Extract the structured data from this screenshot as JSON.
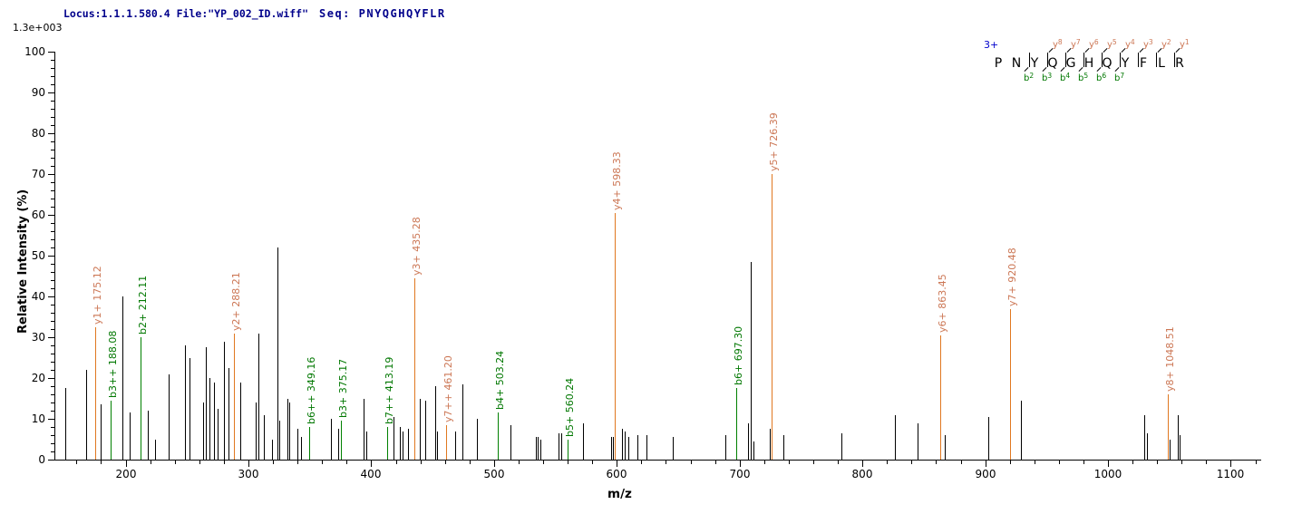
{
  "header": {
    "locus_file": "Locus:1.1.1.580.4 File:\"YP_002_ID.wiff\"",
    "seq": "Seq: PNYQGHQYFLR",
    "base_peak_intensity": "1.3e+003"
  },
  "axes": {
    "x_label": "m/z",
    "y_label": "Relative Intensity (%)",
    "x_ticks": [
      200,
      300,
      400,
      500,
      600,
      700,
      800,
      900,
      1000,
      1100
    ],
    "x_minor_step": 20,
    "y_ticks": [
      0,
      10,
      20,
      30,
      40,
      50,
      60,
      70,
      80,
      90,
      100
    ],
    "y_minor_step": 2
  },
  "sequence": {
    "charge": "3+",
    "peptide": "PNYQGHQYFLR",
    "residues": [
      "P",
      "N",
      "Y",
      "Q",
      "G",
      "H",
      "Q",
      "Y",
      "F",
      "L",
      "R"
    ],
    "cleavages": [
      {
        "after": 2,
        "b": "b2"
      },
      {
        "after": 3,
        "b": "b3",
        "y": "y8"
      },
      {
        "after": 4,
        "b": "b4",
        "y": "y7"
      },
      {
        "after": 5,
        "b": "b5",
        "y": "y6"
      },
      {
        "after": 6,
        "b": "b6",
        "y": "y5"
      },
      {
        "after": 7,
        "b": "b7",
        "y": "y4"
      },
      {
        "after": 8,
        "y": "y3"
      },
      {
        "after": 9,
        "y": "y2"
      },
      {
        "after": 10,
        "y": "y1"
      }
    ]
  },
  "colors": {
    "header_text": "#00008b",
    "y_ion_line": "#e07820",
    "y_ion_label": "#cc7755",
    "b_ion_line": "#008000",
    "b_ion_label": "#007700",
    "peak": "#000000",
    "charge_text": "#0000cc"
  },
  "chart_data": {
    "type": "bar",
    "subtype": "msms-mass-spectrum",
    "title": "Locus:1.1.1.580.4 File:\"YP_002_ID.wiff\" Seq: PNYQGHQYFLR",
    "xlabel": "m/z",
    "ylabel": "Relative Intensity (%)",
    "xlim": [
      142,
      1124
    ],
    "ylim": [
      0,
      100
    ],
    "base_peak_intensity": "1.3e+003",
    "precursor_charge": "3+",
    "peptide": "PNYQGHQYFLR",
    "grid": false,
    "legend": false,
    "peaks": [
      {
        "mz": 151.0,
        "i": 17.5
      },
      {
        "mz": 167.8,
        "i": 22
      },
      {
        "mz": 175.12,
        "i": 32.5,
        "ion": "y",
        "label": "y1+ 175.12"
      },
      {
        "mz": 180.0,
        "i": 13.5
      },
      {
        "mz": 188.08,
        "i": 14.5,
        "ion": "b",
        "label": "b3++ 188.08"
      },
      {
        "mz": 197.3,
        "i": 40
      },
      {
        "mz": 203.2,
        "i": 11.5
      },
      {
        "mz": 212.11,
        "i": 30,
        "ion": "b",
        "label": "b2+ 212.11"
      },
      {
        "mz": 217.9,
        "i": 12
      },
      {
        "mz": 223.6,
        "i": 5
      },
      {
        "mz": 235.4,
        "i": 21
      },
      {
        "mz": 248.2,
        "i": 28
      },
      {
        "mz": 251.9,
        "i": 25
      },
      {
        "mz": 262.9,
        "i": 14
      },
      {
        "mz": 265.4,
        "i": 27.5
      },
      {
        "mz": 268.3,
        "i": 20
      },
      {
        "mz": 272.0,
        "i": 19
      },
      {
        "mz": 275.2,
        "i": 12.5
      },
      {
        "mz": 280.1,
        "i": 29
      },
      {
        "mz": 283.8,
        "i": 22.5
      },
      {
        "mz": 288.21,
        "i": 31,
        "ion": "y",
        "label": "y2+ 288.21"
      },
      {
        "mz": 293.7,
        "i": 19
      },
      {
        "mz": 306.0,
        "i": 14
      },
      {
        "mz": 308.3,
        "i": 31
      },
      {
        "mz": 312.9,
        "i": 11
      },
      {
        "mz": 319.5,
        "i": 5
      },
      {
        "mz": 323.5,
        "i": 52
      },
      {
        "mz": 325.2,
        "i": 9.5
      },
      {
        "mz": 331.5,
        "i": 15
      },
      {
        "mz": 333.5,
        "i": 14
      },
      {
        "mz": 339.9,
        "i": 7.5
      },
      {
        "mz": 342.9,
        "i": 5.5
      },
      {
        "mz": 349.16,
        "i": 8,
        "ion": "b",
        "label": "b6++ 349.16"
      },
      {
        "mz": 367.4,
        "i": 10
      },
      {
        "mz": 372.8,
        "i": 7.5
      },
      {
        "mz": 375.17,
        "i": 9.5,
        "ion": "b",
        "label": "b3+ 375.17"
      },
      {
        "mz": 393.8,
        "i": 15
      },
      {
        "mz": 395.8,
        "i": 7
      },
      {
        "mz": 413.19,
        "i": 8,
        "ion": "b",
        "label": "b7++ 413.19"
      },
      {
        "mz": 417.8,
        "i": 10.5
      },
      {
        "mz": 423.2,
        "i": 8
      },
      {
        "mz": 425.7,
        "i": 7
      },
      {
        "mz": 430.1,
        "i": 7.5
      },
      {
        "mz": 435.28,
        "i": 44.5,
        "ion": "y",
        "label": "y3+ 435.28"
      },
      {
        "mz": 439.5,
        "i": 15
      },
      {
        "mz": 444.3,
        "i": 14.5
      },
      {
        "mz": 451.9,
        "i": 18
      },
      {
        "mz": 453.4,
        "i": 7
      },
      {
        "mz": 461.2,
        "i": 8.5,
        "ion": "y",
        "label": "y7++ 461.20"
      },
      {
        "mz": 468.1,
        "i": 7
      },
      {
        "mz": 474.5,
        "i": 18.5
      },
      {
        "mz": 486.1,
        "i": 10
      },
      {
        "mz": 503.24,
        "i": 11.5,
        "ion": "b",
        "label": "b4+ 503.24"
      },
      {
        "mz": 513.2,
        "i": 8.5
      },
      {
        "mz": 533.9,
        "i": 5.5
      },
      {
        "mz": 535.6,
        "i": 5.5
      },
      {
        "mz": 537.8,
        "i": 5
      },
      {
        "mz": 552.5,
        "i": 6.5
      },
      {
        "mz": 555.0,
        "i": 6.5
      },
      {
        "mz": 560.24,
        "i": 5,
        "ion": "b",
        "label": "b5+ 560.24"
      },
      {
        "mz": 572.3,
        "i": 9
      },
      {
        "mz": 595.3,
        "i": 5.5
      },
      {
        "mz": 596.6,
        "i": 5.5
      },
      {
        "mz": 598.33,
        "i": 60.5,
        "ion": "y",
        "label": "y4+ 598.33"
      },
      {
        "mz": 604.3,
        "i": 7.5
      },
      {
        "mz": 606.6,
        "i": 7
      },
      {
        "mz": 609.5,
        "i": 5.5
      },
      {
        "mz": 616.5,
        "i": 6
      },
      {
        "mz": 623.9,
        "i": 6
      },
      {
        "mz": 645.9,
        "i": 5.5
      },
      {
        "mz": 688.4,
        "i": 6
      },
      {
        "mz": 697.3,
        "i": 17.5,
        "ion": "b",
        "label": "b6+ 697.30"
      },
      {
        "mz": 707.2,
        "i": 9
      },
      {
        "mz": 709.1,
        "i": 48.5
      },
      {
        "mz": 711.4,
        "i": 4.5
      },
      {
        "mz": 724.8,
        "i": 7.5
      },
      {
        "mz": 726.39,
        "i": 70,
        "ion": "y",
        "label": "y5+ 726.39"
      },
      {
        "mz": 735.3,
        "i": 6
      },
      {
        "mz": 783.0,
        "i": 6.5
      },
      {
        "mz": 826.7,
        "i": 11
      },
      {
        "mz": 845.2,
        "i": 9
      },
      {
        "mz": 863.45,
        "i": 30.5,
        "ion": "y",
        "label": "y6+ 863.45"
      },
      {
        "mz": 866.9,
        "i": 6
      },
      {
        "mz": 902.4,
        "i": 10.5
      },
      {
        "mz": 920.48,
        "i": 37,
        "ion": "y",
        "label": "y7+ 920.48"
      },
      {
        "mz": 929.2,
        "i": 14.5
      },
      {
        "mz": 1029.4,
        "i": 11
      },
      {
        "mz": 1031.4,
        "i": 6.5
      },
      {
        "mz": 1048.51,
        "i": 16,
        "ion": "y",
        "label": "y8+ 1048.51"
      },
      {
        "mz": 1050.4,
        "i": 5
      },
      {
        "mz": 1056.5,
        "i": 11
      },
      {
        "mz": 1058.0,
        "i": 6
      }
    ]
  }
}
